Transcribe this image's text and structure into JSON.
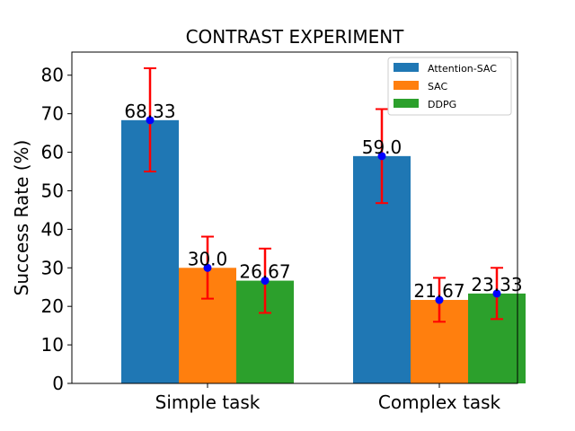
{
  "chart_data": {
    "type": "bar",
    "title": "CONTRAST EXPERIMENT",
    "xlabel": "",
    "ylabel": "Success Rate (%)",
    "categories": [
      "Simple task",
      "Complex task"
    ],
    "ylim": [
      0,
      86
    ],
    "yticks": [
      0,
      10,
      20,
      30,
      40,
      50,
      60,
      70,
      80
    ],
    "grid": false,
    "legend_position": "top-right",
    "series": [
      {
        "name": "Attention-SAC",
        "color": "#1f77b4",
        "values": [
          68.33,
          59.0
        ],
        "value_labels": [
          "68.33",
          "59.0"
        ],
        "error_low": [
          55.0,
          46.8
        ],
        "error_high": [
          81.8,
          71.2
        ]
      },
      {
        "name": "SAC",
        "color": "#ff7f0e",
        "values": [
          30.0,
          21.67
        ],
        "value_labels": [
          "30.0",
          "21.67"
        ],
        "error_low": [
          22.0,
          16.0
        ],
        "error_high": [
          38.1,
          27.4
        ]
      },
      {
        "name": "DDPG",
        "color": "#2ca02c",
        "values": [
          26.67,
          23.33
        ],
        "value_labels": [
          "26.67",
          "23.33"
        ],
        "error_low": [
          18.3,
          16.7
        ],
        "error_high": [
          35.0,
          30.0
        ]
      }
    ],
    "errorbar_color": "#ff0000",
    "marker_color": "#0000ff"
  }
}
